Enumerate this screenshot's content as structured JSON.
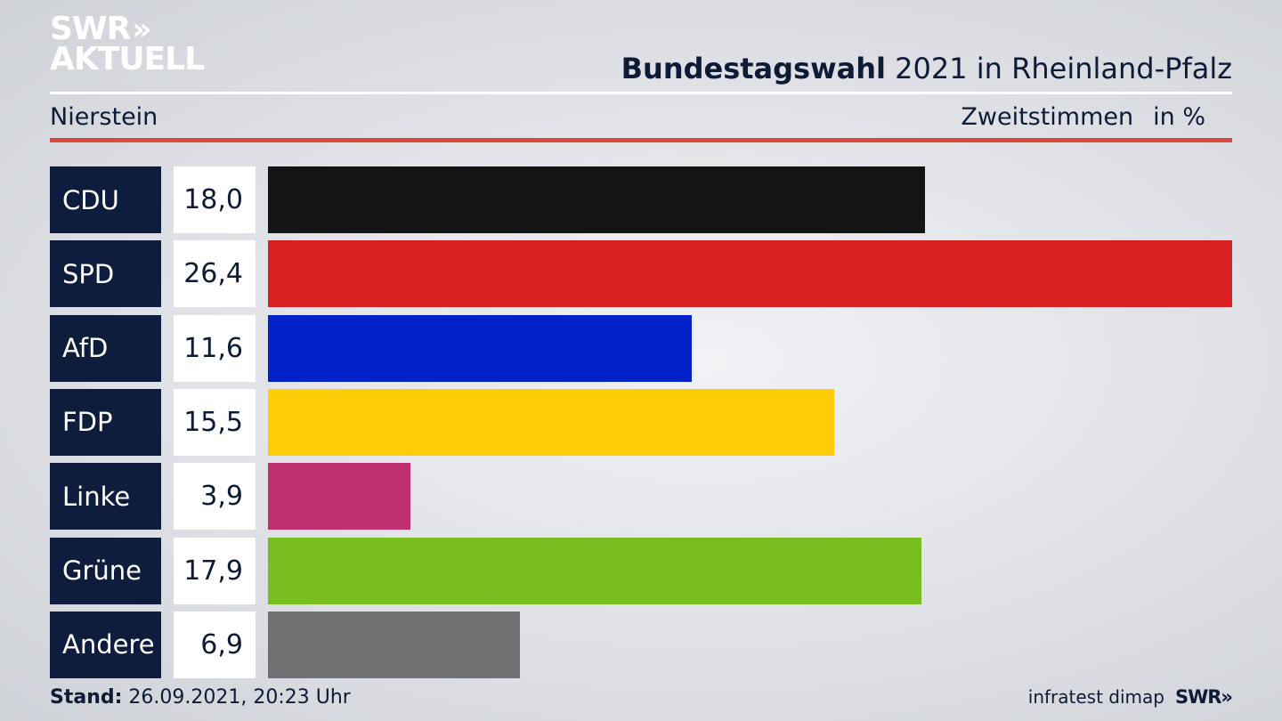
{
  "logo": {
    "line1": "SWR",
    "line2": "AKTUELL",
    "chevron": "»"
  },
  "header": {
    "title_bold": "Bundestagswahl",
    "title_rest": " 2021 in Rheinland-Pfalz",
    "location": "Nierstein",
    "measure": "Zweitstimmen",
    "unit": "in %"
  },
  "chart_data": {
    "type": "bar",
    "orientation": "horizontal",
    "categories": [
      "CDU",
      "SPD",
      "AfD",
      "FDP",
      "Linke",
      "Grüne",
      "Andere"
    ],
    "values": [
      18.0,
      26.4,
      11.6,
      15.5,
      3.9,
      17.9,
      6.9
    ],
    "value_labels": [
      "18,0",
      "26,4",
      "11,6",
      "15,5",
      "3,9",
      "17,9",
      "6,9"
    ],
    "colors": [
      "#141414",
      "#d82020",
      "#0022c8",
      "#ffcc07",
      "#be2f70",
      "#78be1e",
      "#707072"
    ],
    "xlim": [
      0,
      26.4
    ]
  },
  "footer": {
    "stand_label": "Stand:",
    "stand_value": " 26.09.2021, 20:23 Uhr",
    "source": "infratest dimap",
    "brand": "SWR»"
  }
}
